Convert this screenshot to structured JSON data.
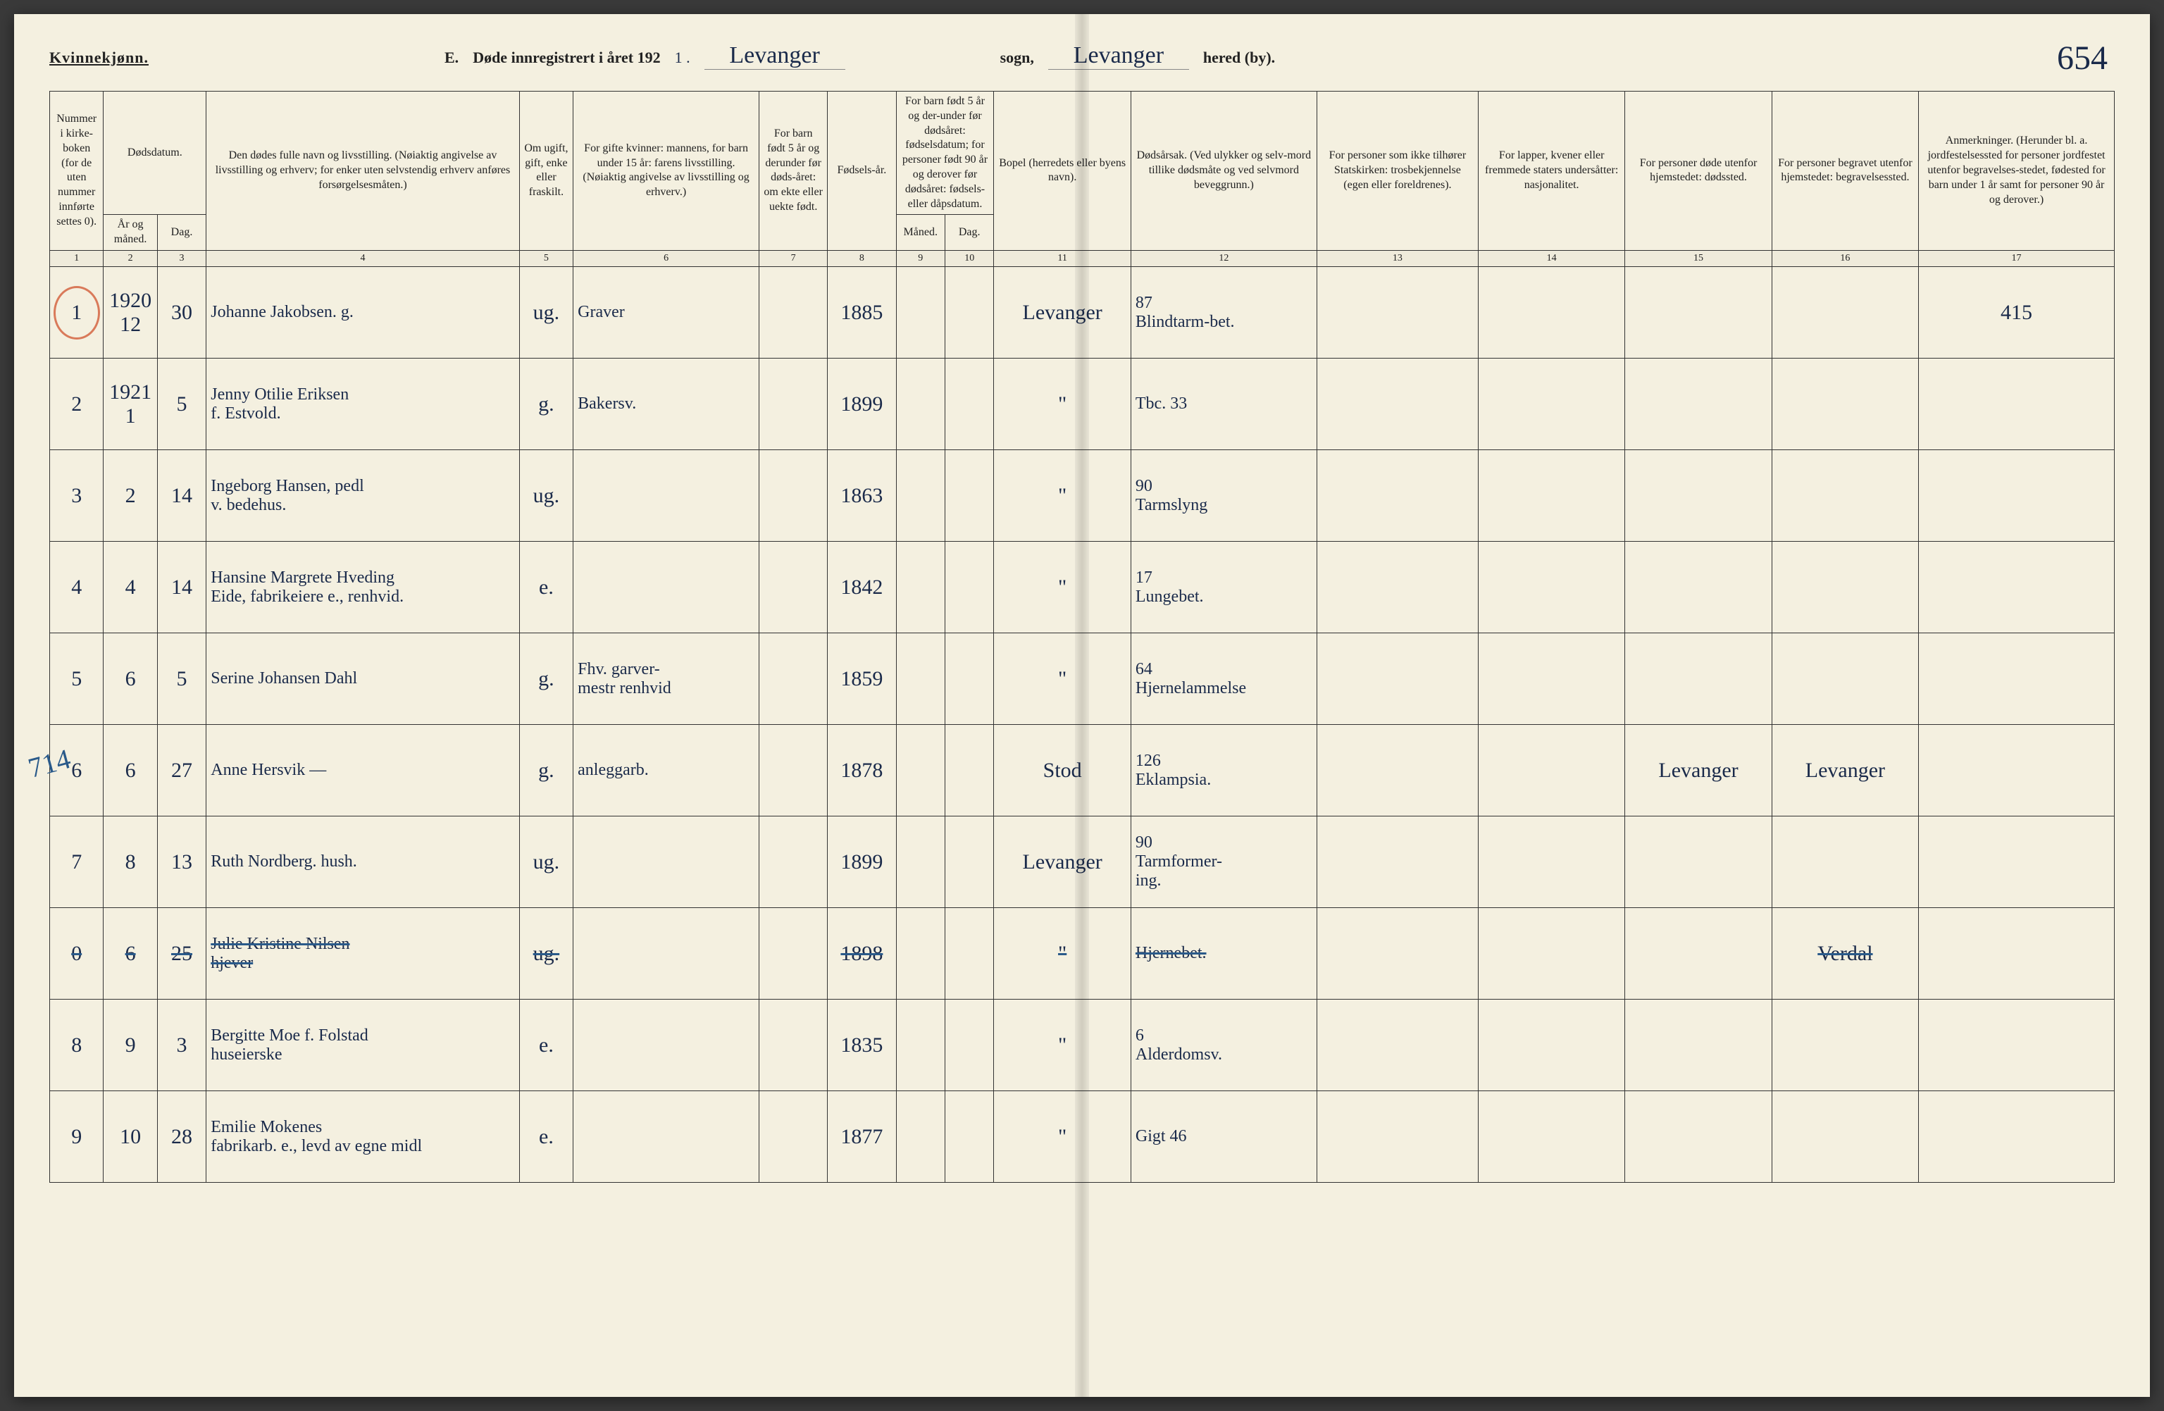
{
  "header": {
    "gender": "Kvinnekjønn.",
    "section": "E.",
    "title": "Døde innregistrert i året 192",
    "year_suffix": "1 .",
    "parish": "Levanger",
    "sogn_label": "sogn,",
    "district": "Levanger",
    "by_label": "hered (by).",
    "page_number": "654"
  },
  "column_headers": {
    "c1": "Nummer i kirke-boken (for de uten nummer innførte settes 0).",
    "c2a": "Dødsdatum.",
    "c2b": "År og måned.",
    "c3": "Dag.",
    "c4": "Den dødes fulle navn og livsstilling. (Nøiaktig angivelse av livsstilling og erhverv; for enker uten selvstendig erhverv anføres forsørgelsesmåten.)",
    "c5": "Om ugift, gift, enke eller fraskilt.",
    "c6": "For gifte kvinner: mannens, for barn under 15 år: farens livsstilling. (Nøiaktig angivelse av livsstilling og erhverv.)",
    "c7": "For barn født 5 år og derunder før døds-året: om ekte eller uekte født.",
    "c8": "Fødsels-år.",
    "c9_10": "For barn født 5 år og der-under før dødsåret: fødselsdatum; for personer født 90 år og derover før dødsåret: fødsels- eller dåpsdatum.",
    "c9": "Måned.",
    "c10": "Dag.",
    "c11": "Bopel (herredets eller byens navn).",
    "c12": "Dødsårsak. (Ved ulykker og selv-mord tillike dødsmåte og ved selvmord beveggrunn.)",
    "c13": "For personer som ikke tilhører Statskirken: trosbekjennelse (egen eller foreldrenes).",
    "c14": "For lapper, kvener eller fremmede staters undersåtter: nasjonalitet.",
    "c15": "For personer døde utenfor hjemstedet: dødssted.",
    "c16": "For personer begravet utenfor hjemstedet: begravelsessted.",
    "c17": "Anmerkninger. (Herunder bl. a. jordfestelsessted for personer jordfestet utenfor begravelses-stedet, fødested for barn under 1 år samt for personer 90 år og derover.)"
  },
  "col_nums": [
    "1",
    "2",
    "3",
    "4",
    "5",
    "6",
    "7",
    "8",
    "9",
    "10",
    "11",
    "12",
    "13",
    "14",
    "15",
    "16",
    "17"
  ],
  "rows": [
    {
      "n": "1",
      "ym": "1920\n12",
      "d": "30",
      "name": "Johanne Jakobsen. g.",
      "ms": "ug.",
      "spouse": "Graver",
      "born": "1885",
      "place": "Levanger",
      "cause": "87\nBlindtarm-bet.",
      "note": "415"
    },
    {
      "n": "2",
      "ym": "1921\n1",
      "d": "5",
      "name": "Jenny Otilie Eriksen\nf. Estvold.",
      "ms": "g.",
      "spouse": "Bakersv.",
      "born": "1899",
      "place": "\"",
      "cause": "Tbc. 33",
      "note": ""
    },
    {
      "n": "3",
      "ym": "2",
      "d": "14",
      "name": "Ingeborg Hansen, pedl\nv. bedehus.",
      "ms": "ug.",
      "spouse": "",
      "born": "1863",
      "place": "\"",
      "cause": "90\nTarmslyng",
      "note": ""
    },
    {
      "n": "4",
      "ym": "4",
      "d": "14",
      "name": "Hansine Margrete Hveding\nEide, fabrikeiere e., renhvid.",
      "ms": "e.",
      "spouse": "",
      "born": "1842",
      "place": "\"",
      "cause": "17\nLungebet.",
      "note": ""
    },
    {
      "n": "5",
      "ym": "6",
      "d": "5",
      "name": "Serine Johansen Dahl",
      "ms": "g.",
      "spouse": "Fhv. garver-\nmestr renhvid",
      "born": "1859",
      "place": "\"",
      "cause": "64\nHjernelammelse",
      "note": ""
    },
    {
      "n": "6",
      "ym": "6",
      "d": "27",
      "name": "Anne Hersvik —",
      "ms": "g.",
      "spouse": "anleggarb.",
      "born": "1878",
      "place": "Stod",
      "cause": "126\nEklampsia.",
      "c15": "Levanger",
      "c16": "Levanger",
      "note": "",
      "margin": "714"
    },
    {
      "n": "7",
      "ym": "8",
      "d": "13",
      "name": "Ruth Nordberg. hush.",
      "ms": "ug.",
      "spouse": "",
      "born": "1899",
      "place": "Levanger",
      "cause": "90\nTarmformer-\ning.",
      "note": ""
    },
    {
      "n": "0",
      "ym": "6",
      "d": "25",
      "name": "Julie Kristine Nilsen\nhjever",
      "ms": "ug.",
      "spouse": "",
      "born": "1898",
      "place": "\"",
      "cause": "Hjernebet.",
      "c16": "Verdal",
      "note": "",
      "struck": true
    },
    {
      "n": "8",
      "ym": "9",
      "d": "3",
      "name": "Bergitte Moe f. Folstad\nhuseierske",
      "ms": "e.",
      "spouse": "",
      "born": "1835",
      "place": "\"",
      "cause": "6\nAlderdomsv.",
      "note": ""
    },
    {
      "n": "9",
      "ym": "10",
      "d": "28",
      "name": "Emilie Mokenes\nfabrikarb. e., levd av egne midl",
      "ms": "e.",
      "spouse": "",
      "born": "1877",
      "place": "\"",
      "cause": "Gigt 46",
      "note": ""
    }
  ],
  "col_widths": [
    "55",
    "55",
    "50",
    "320",
    "55",
    "190",
    "70",
    "70",
    "50",
    "50",
    "140",
    "190",
    "165",
    "150",
    "150",
    "150",
    "200"
  ]
}
